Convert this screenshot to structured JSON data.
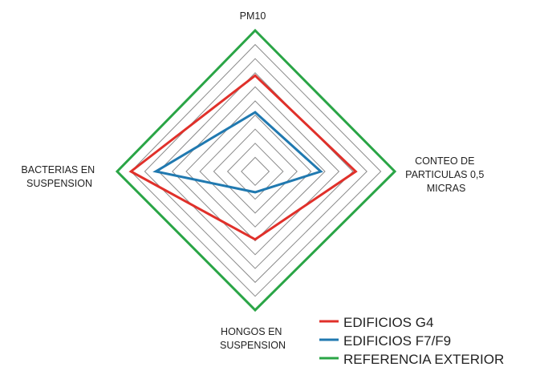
{
  "chart_data": {
    "type": "radar",
    "axes": [
      [
        "PM10"
      ],
      [
        "CONTEO DE",
        "PARTICULAS 0,5",
        "MICRAS"
      ],
      [
        "HONGOS EN",
        "SUSPENSION"
      ],
      [
        "BACTERIAS EN",
        "SUSPENSION"
      ]
    ],
    "range": [
      0,
      10
    ],
    "grid_rings": 10,
    "grid": true,
    "legend_position": "bottom-right",
    "series": [
      {
        "name": "EDIFICIOS G4",
        "color": "#e0302a",
        "values": [
          6.8,
          7.2,
          4.9,
          9.0
        ]
      },
      {
        "name": "EDIFICIOS F7/F9",
        "color": "#2079b0",
        "values": [
          4.2,
          4.7,
          1.5,
          7.2
        ]
      },
      {
        "name": "REFERENCIA EXTERIOR",
        "color": "#2aa546",
        "values": [
          10,
          10,
          10,
          10
        ]
      }
    ]
  }
}
